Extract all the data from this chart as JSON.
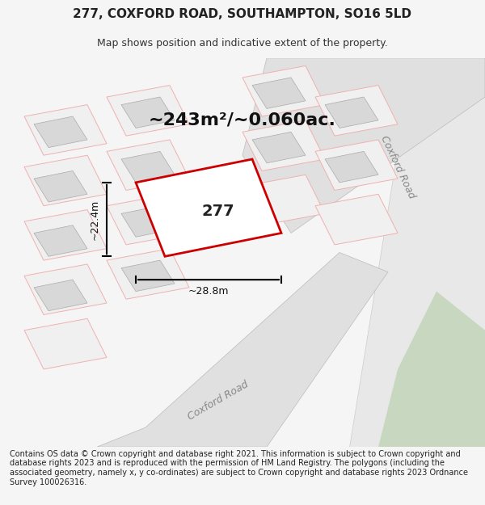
{
  "title": "277, COXFORD ROAD, SOUTHAMPTON, SO16 5LD",
  "subtitle": "Map shows position and indicative extent of the property.",
  "area_label": "~243m²/~0.060ac.",
  "property_number": "277",
  "width_label": "~28.8m",
  "height_label": "~22.4m",
  "road_label_1": "Coxford Road",
  "road_label_2": "Coxford Road",
  "footer": "Contains OS data © Crown copyright and database right 2021. This information is subject to Crown copyright and database rights 2023 and is reproduced with the permission of HM Land Registry. The polygons (including the associated geometry, namely x, y co-ordinates) are subject to Crown copyright and database rights 2023 Ordnance Survey 100026316.",
  "bg_color": "#f5f5f5",
  "map_bg": "#ffffff",
  "plot_outline_color": "#cc0000",
  "grid_line_color": "#f0b0b0",
  "building_color": "#d8d8d8",
  "road_area_color": "#e8e8e8",
  "road_grey_color": "#c8c8c8",
  "green_area_color": "#c8d8c0",
  "title_fontsize": 11,
  "subtitle_fontsize": 9,
  "area_label_fontsize": 16,
  "footer_fontsize": 7
}
